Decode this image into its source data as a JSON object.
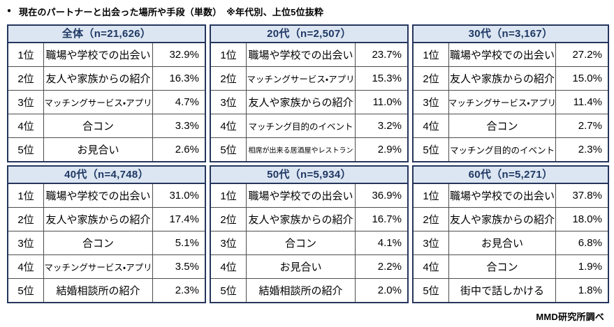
{
  "page": {
    "title_bullet": "●",
    "footer": "MMD研究所調べ"
  },
  "colors": {
    "header_bg": "#dce6f2",
    "header_text": "#1f3864",
    "outer_border": "#25355c",
    "inner_border": "#4d4d4d",
    "body_text": "#000000"
  },
  "chart_data": {
    "type": "table",
    "title": "現在のパートナーと出会った場所や手段（単数）　※年代別、上位5位抜粋",
    "source": "MMD研究所調べ",
    "tables": [
      {
        "header": "全体（n=21,626）",
        "group": "全体",
        "n": 21626,
        "rows": [
          {
            "rank": "1位",
            "label": "職場や学校での出会い",
            "value": "32.9%",
            "pct": 32.9
          },
          {
            "rank": "2位",
            "label": "友人や家族からの紹介",
            "value": "16.3%",
            "pct": 16.3
          },
          {
            "rank": "3位",
            "label": "マッチングサービス・アプリ",
            "value": "4.7%",
            "pct": 4.7
          },
          {
            "rank": "4位",
            "label": "合コン",
            "value": "3.3%",
            "pct": 3.3
          },
          {
            "rank": "5位",
            "label": "お見合い",
            "value": "2.6%",
            "pct": 2.6
          }
        ]
      },
      {
        "header": "20代（n=2,507）",
        "group": "20代",
        "n": 2507,
        "rows": [
          {
            "rank": "1位",
            "label": "職場や学校での出会い",
            "value": "23.7%",
            "pct": 23.7
          },
          {
            "rank": "2位",
            "label": "マッチングサービス・アプリ",
            "value": "15.3%",
            "pct": 15.3
          },
          {
            "rank": "3位",
            "label": "友人や家族からの紹介",
            "value": "11.0%",
            "pct": 11.0
          },
          {
            "rank": "4位",
            "label": "マッチング目的のイベント",
            "value": "3.2%",
            "pct": 3.2
          },
          {
            "rank": "5位",
            "label": "相席が出来る居酒屋やレストラン",
            "value": "2.9%",
            "pct": 2.9
          }
        ]
      },
      {
        "header": "30代（n=3,167）",
        "group": "30代",
        "n": 3167,
        "rows": [
          {
            "rank": "1位",
            "label": "職場や学校での出会い",
            "value": "27.2%",
            "pct": 27.2
          },
          {
            "rank": "2位",
            "label": "友人や家族からの紹介",
            "value": "15.0%",
            "pct": 15.0
          },
          {
            "rank": "3位",
            "label": "マッチングサービス・アプリ",
            "value": "11.4%",
            "pct": 11.4
          },
          {
            "rank": "4位",
            "label": "合コン",
            "value": "2.7%",
            "pct": 2.7
          },
          {
            "rank": "5位",
            "label": "マッチング目的のイベント",
            "value": "2.3%",
            "pct": 2.3
          }
        ]
      },
      {
        "header": "40代（n=4,748）",
        "group": "40代",
        "n": 4748,
        "rows": [
          {
            "rank": "1位",
            "label": "職場や学校での出会い",
            "value": "31.0%",
            "pct": 31.0
          },
          {
            "rank": "2位",
            "label": "友人や家族からの紹介",
            "value": "17.4%",
            "pct": 17.4
          },
          {
            "rank": "3位",
            "label": "合コン",
            "value": "5.1%",
            "pct": 5.1
          },
          {
            "rank": "4位",
            "label": "マッチングサービス・アプリ",
            "value": "3.5%",
            "pct": 3.5
          },
          {
            "rank": "5位",
            "label": "結婚相談所の紹介",
            "value": "2.3%",
            "pct": 2.3
          }
        ]
      },
      {
        "header": "50代（n=5,934）",
        "group": "50代",
        "n": 5934,
        "rows": [
          {
            "rank": "1位",
            "label": "職場や学校での出会い",
            "value": "36.9%",
            "pct": 36.9
          },
          {
            "rank": "2位",
            "label": "友人や家族からの紹介",
            "value": "16.7%",
            "pct": 16.7
          },
          {
            "rank": "3位",
            "label": "合コン",
            "value": "4.1%",
            "pct": 4.1
          },
          {
            "rank": "4位",
            "label": "お見合い",
            "value": "2.2%",
            "pct": 2.2
          },
          {
            "rank": "5位",
            "label": "結婚相談所の紹介",
            "value": "2.0%",
            "pct": 2.0
          }
        ]
      },
      {
        "header": "60代（n=5,271）",
        "group": "60代",
        "n": 5271,
        "rows": [
          {
            "rank": "1位",
            "label": "職場や学校での出会い",
            "value": "37.8%",
            "pct": 37.8
          },
          {
            "rank": "2位",
            "label": "友人や家族からの紹介",
            "value": "18.0%",
            "pct": 18.0
          },
          {
            "rank": "3位",
            "label": "お見合い",
            "value": "6.8%",
            "pct": 6.8
          },
          {
            "rank": "4位",
            "label": "合コン",
            "value": "1.9%",
            "pct": 1.9
          },
          {
            "rank": "5位",
            "label": "街中で話しかける",
            "value": "1.8%",
            "pct": 1.8
          }
        ]
      }
    ]
  }
}
